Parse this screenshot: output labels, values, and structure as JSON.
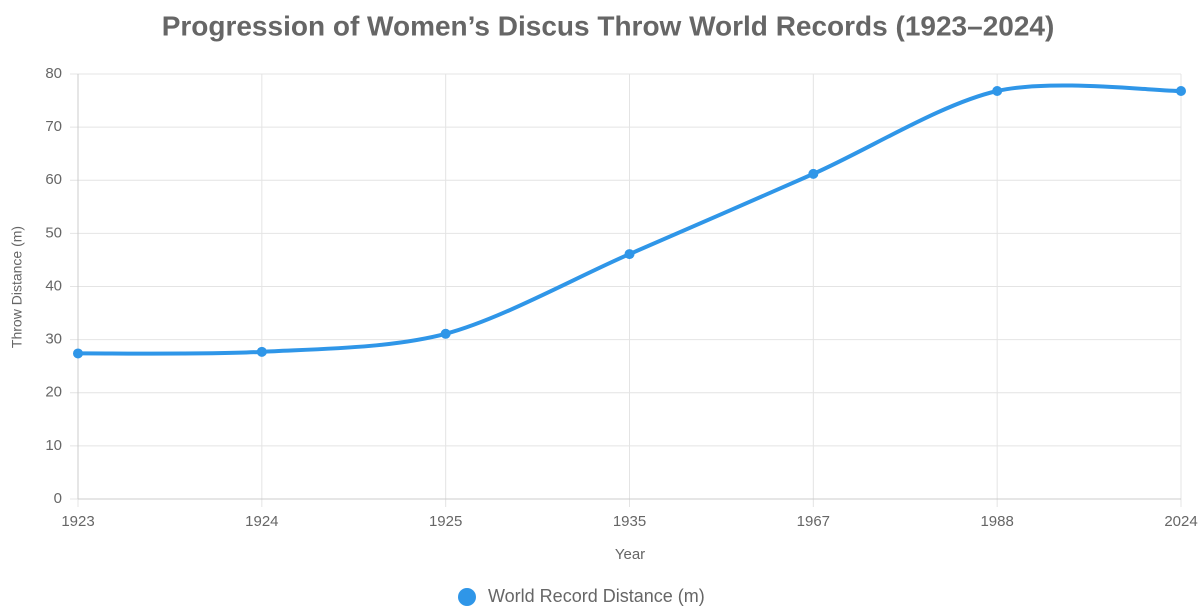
{
  "chart_data": {
    "type": "line",
    "title": "Progression of Women’s Discus Throw World Records (1923–2024)",
    "x_label": "Year",
    "y_label": "Throw Distance (m)",
    "categories": [
      "1923",
      "1924",
      "1925",
      "1935",
      "1967",
      "1988",
      "2024"
    ],
    "series": [
      {
        "name": "World Record Distance (m)",
        "color": "#2f96e8",
        "values": [
          27.4,
          27.7,
          31.1,
          46.1,
          61.2,
          76.8,
          76.8
        ]
      }
    ],
    "ylim": [
      0,
      80
    ],
    "yticks": [
      0,
      10,
      20,
      30,
      40,
      50,
      60,
      70,
      80
    ],
    "grid": true,
    "legend": "bottom"
  }
}
